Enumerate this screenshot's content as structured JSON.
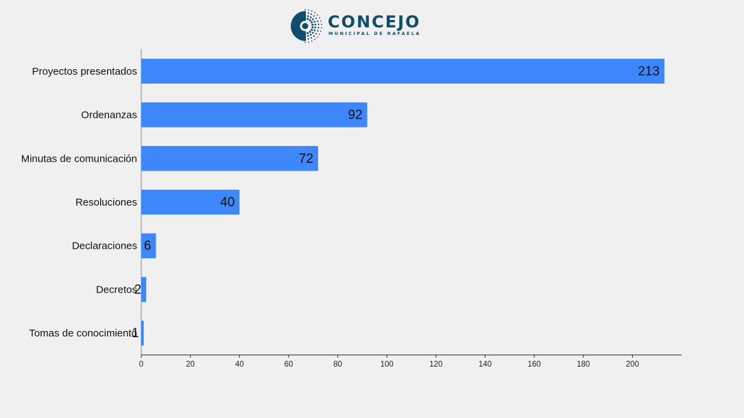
{
  "logo": {
    "brand": "CONCEJO",
    "subtitle": "MUNICIPAL DE RAFAELA"
  },
  "colors": {
    "bar": "#3d87fb",
    "logo": "#0f4c6e",
    "background": "#f0f0f0"
  },
  "chart_data": {
    "type": "bar",
    "orientation": "horizontal",
    "categories": [
      "Proyectos presentados",
      "Ordenanzas",
      "Minutas de comunicación",
      "Resoluciones",
      "Declaraciones",
      "Decretos",
      "Tomas de conocimiento"
    ],
    "values": [
      213,
      92,
      72,
      40,
      6,
      2,
      1
    ],
    "title": "",
    "xlabel": "",
    "ylabel": "",
    "xlim": [
      0,
      220
    ],
    "xticks": [
      0,
      20,
      40,
      60,
      80,
      100,
      120,
      140,
      160,
      180,
      200
    ],
    "grid": false,
    "legend": false
  }
}
